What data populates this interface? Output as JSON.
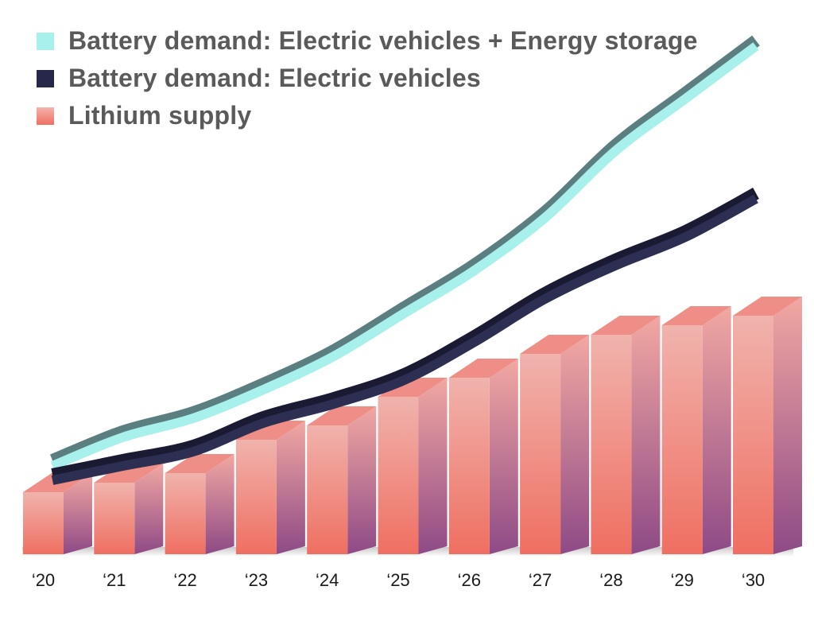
{
  "legend": {
    "items": [
      {
        "label": "Battery demand: Electric vehicles + Energy storage",
        "color": "#a8f0ec"
      },
      {
        "label": "Battery demand: Electric vehicles",
        "color": "#26284a"
      },
      {
        "label": "Lithium supply",
        "color": "#ef7d72"
      }
    ]
  },
  "chart_data": {
    "type": "bar",
    "title": "",
    "xlabel": "",
    "ylabel": "",
    "categories": [
      "‘20",
      "‘21",
      "‘22",
      "‘23",
      "‘24",
      "‘25",
      "‘26",
      "‘27",
      "‘28",
      "‘29",
      "‘30"
    ],
    "ylim": [
      0,
      100
    ],
    "grid": false,
    "legend_position": "top-left",
    "series": [
      {
        "name": "Lithium supply",
        "type": "bar",
        "color": "#ef7d72",
        "values": [
          13,
          15,
          17,
          24,
          27,
          33,
          37,
          42,
          46,
          48,
          50
        ]
      },
      {
        "name": "Battery demand: Electric vehicles + Energy storage",
        "type": "line",
        "color": "#a8f0ec",
        "values": [
          19,
          25,
          29,
          35,
          42,
          51,
          60,
          71,
          85,
          96,
          107
        ]
      },
      {
        "name": "Battery demand: Electric vehicles",
        "type": "line",
        "color": "#26284a",
        "values": [
          16,
          19,
          22,
          28,
          32,
          37,
          45,
          54,
          61,
          67,
          75
        ]
      }
    ]
  }
}
